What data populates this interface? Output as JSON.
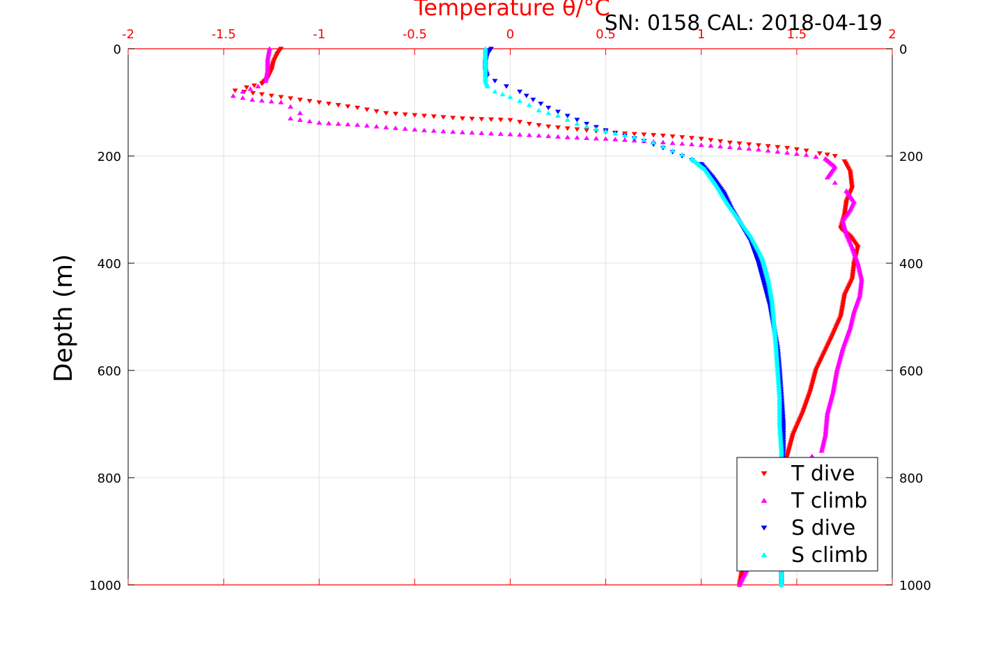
{
  "chart_data": {
    "type": "scatter",
    "title": "Temperature θ/°C",
    "annotation": "SN: 0158  CAL: 2018-04-19",
    "xlabel": "Temperature θ/°C",
    "ylabel": "Depth (m)",
    "xlim": [
      -2,
      2
    ],
    "ylim": [
      0,
      1000
    ],
    "y_reversed": true,
    "x_axis_position": "top",
    "grid": true,
    "legend_position": "bottom-right",
    "x_ticks": [
      "-2",
      "-1.5",
      "-1",
      "-0.5",
      "0",
      "0.5",
      "1",
      "1.5",
      "2"
    ],
    "y_ticks_left": [
      "0",
      "200",
      "400",
      "600",
      "800",
      "1000"
    ],
    "y_ticks_right": [
      "0",
      "200",
      "400",
      "600",
      "800",
      "1000"
    ],
    "colors": {
      "axis_top": "#ff0000",
      "grid": "#e0e0e0",
      "t_dive": "#ff0000",
      "t_climb": "#ff00ff",
      "s_dive": "#0000ff",
      "s_climb": "#00ffff"
    },
    "series": [
      {
        "name": "T dive",
        "marker": "triangle-down",
        "color": "#ff0000",
        "points": [
          [
            -1.2,
            0
          ],
          [
            -1.22,
            10
          ],
          [
            -1.24,
            25
          ],
          [
            -1.25,
            40
          ],
          [
            -1.27,
            55
          ],
          [
            -1.3,
            65
          ],
          [
            -1.38,
            72
          ],
          [
            -1.44,
            78
          ],
          [
            -1.3,
            85
          ],
          [
            -1.2,
            90
          ],
          [
            -1.1,
            95
          ],
          [
            -1.0,
            100
          ],
          [
            -0.9,
            105
          ],
          [
            -0.8,
            110
          ],
          [
            -0.65,
            120
          ],
          [
            -0.45,
            125
          ],
          [
            -0.25,
            130
          ],
          [
            0.0,
            133
          ],
          [
            0.1,
            140
          ],
          [
            0.2,
            145
          ],
          [
            0.4,
            152
          ],
          [
            0.6,
            158
          ],
          [
            0.8,
            162
          ],
          [
            1.0,
            168
          ],
          [
            1.15,
            175
          ],
          [
            1.3,
            180
          ],
          [
            1.45,
            185
          ],
          [
            1.55,
            190
          ],
          [
            1.62,
            195
          ],
          [
            1.7,
            200
          ],
          [
            1.75,
            210
          ],
          [
            1.78,
            230
          ],
          [
            1.79,
            260
          ],
          [
            1.76,
            285
          ],
          [
            1.75,
            310
          ],
          [
            1.73,
            335
          ],
          [
            1.78,
            350
          ],
          [
            1.82,
            370
          ],
          [
            1.8,
            400
          ],
          [
            1.79,
            430
          ],
          [
            1.75,
            460
          ],
          [
            1.73,
            500
          ],
          [
            1.68,
            540
          ],
          [
            1.64,
            570
          ],
          [
            1.6,
            600
          ],
          [
            1.57,
            640
          ],
          [
            1.53,
            680
          ],
          [
            1.48,
            720
          ],
          [
            1.45,
            760
          ],
          [
            1.4,
            800
          ],
          [
            1.35,
            850
          ],
          [
            1.28,
            900
          ],
          [
            1.24,
            950
          ],
          [
            1.21,
            980
          ],
          [
            1.2,
            1000
          ]
        ]
      },
      {
        "name": "T climb",
        "marker": "triangle-up",
        "color": "#ff00ff",
        "points": [
          [
            -1.26,
            0
          ],
          [
            -1.27,
            20
          ],
          [
            -1.27,
            40
          ],
          [
            -1.28,
            60
          ],
          [
            -1.32,
            70
          ],
          [
            -1.4,
            80
          ],
          [
            -1.45,
            88
          ],
          [
            -1.35,
            95
          ],
          [
            -1.2,
            100
          ],
          [
            -1.15,
            108
          ],
          [
            -1.1,
            120
          ],
          [
            -1.15,
            130
          ],
          [
            -1.0,
            138
          ],
          [
            -0.8,
            142
          ],
          [
            -0.6,
            148
          ],
          [
            -0.45,
            152
          ],
          [
            -0.3,
            155
          ],
          [
            -0.1,
            158
          ],
          [
            0.1,
            161
          ],
          [
            0.3,
            165
          ],
          [
            0.5,
            168
          ],
          [
            0.7,
            172
          ],
          [
            0.9,
            177
          ],
          [
            1.1,
            182
          ],
          [
            1.3,
            188
          ],
          [
            1.45,
            194
          ],
          [
            1.55,
            198
          ],
          [
            1.65,
            205
          ],
          [
            1.7,
            220
          ],
          [
            1.66,
            240
          ],
          [
            1.7,
            250
          ],
          [
            1.76,
            265
          ],
          [
            1.8,
            285
          ],
          [
            1.78,
            300
          ],
          [
            1.74,
            320
          ],
          [
            1.76,
            345
          ],
          [
            1.79,
            370
          ],
          [
            1.82,
            400
          ],
          [
            1.84,
            430
          ],
          [
            1.83,
            460
          ],
          [
            1.8,
            490
          ],
          [
            1.78,
            520
          ],
          [
            1.74,
            560
          ],
          [
            1.71,
            600
          ],
          [
            1.69,
            640
          ],
          [
            1.66,
            680
          ],
          [
            1.65,
            720
          ],
          [
            1.63,
            750
          ],
          [
            1.58,
            760
          ],
          [
            1.5,
            800
          ],
          [
            1.42,
            850
          ],
          [
            1.35,
            900
          ],
          [
            1.27,
            950
          ],
          [
            1.22,
            985
          ],
          [
            1.2,
            1000
          ]
        ]
      },
      {
        "name": "S dive",
        "marker": "triangle-down",
        "color": "#0000ff",
        "points": [
          [
            -0.1,
            0
          ],
          [
            -0.12,
            10
          ],
          [
            -0.13,
            25
          ],
          [
            -0.13,
            40
          ],
          [
            -0.12,
            50
          ],
          [
            -0.08,
            60
          ],
          [
            -0.02,
            70
          ],
          [
            0.05,
            80
          ],
          [
            0.12,
            95
          ],
          [
            0.2,
            110
          ],
          [
            0.3,
            125
          ],
          [
            0.4,
            140
          ],
          [
            0.5,
            152
          ],
          [
            0.6,
            162
          ],
          [
            0.7,
            172
          ],
          [
            0.8,
            185
          ],
          [
            0.9,
            200
          ],
          [
            1.0,
            215
          ],
          [
            1.06,
            240
          ],
          [
            1.12,
            270
          ],
          [
            1.16,
            300
          ],
          [
            1.21,
            330
          ],
          [
            1.26,
            360
          ],
          [
            1.3,
            400
          ],
          [
            1.33,
            440
          ],
          [
            1.36,
            480
          ],
          [
            1.38,
            520
          ],
          [
            1.4,
            560
          ],
          [
            1.41,
            600
          ],
          [
            1.42,
            650
          ],
          [
            1.43,
            700
          ],
          [
            1.43,
            750
          ],
          [
            1.42,
            800
          ],
          [
            1.42,
            850
          ],
          [
            1.42,
            900
          ],
          [
            1.42,
            950
          ],
          [
            1.42,
            1000
          ]
        ]
      },
      {
        "name": "S climb",
        "marker": "triangle-up",
        "color": "#00ffff",
        "points": [
          [
            -0.13,
            0
          ],
          [
            -0.13,
            15
          ],
          [
            -0.13,
            30
          ],
          [
            -0.13,
            45
          ],
          [
            -0.13,
            60
          ],
          [
            -0.12,
            70
          ],
          [
            -0.08,
            80
          ],
          [
            0.0,
            90
          ],
          [
            0.1,
            105
          ],
          [
            0.15,
            115
          ],
          [
            0.25,
            125
          ],
          [
            0.35,
            140
          ],
          [
            0.45,
            150
          ],
          [
            0.55,
            158
          ],
          [
            0.65,
            165
          ],
          [
            0.75,
            175
          ],
          [
            0.85,
            190
          ],
          [
            0.95,
            205
          ],
          [
            1.02,
            225
          ],
          [
            1.08,
            255
          ],
          [
            1.14,
            290
          ],
          [
            1.2,
            320
          ],
          [
            1.26,
            350
          ],
          [
            1.32,
            390
          ],
          [
            1.35,
            430
          ],
          [
            1.37,
            470
          ],
          [
            1.38,
            510
          ],
          [
            1.39,
            550
          ],
          [
            1.4,
            600
          ],
          [
            1.41,
            650
          ],
          [
            1.41,
            700
          ],
          [
            1.42,
            750
          ],
          [
            1.42,
            800
          ],
          [
            1.42,
            850
          ],
          [
            1.41,
            900
          ],
          [
            1.42,
            950
          ],
          [
            1.42,
            1000
          ]
        ]
      }
    ]
  }
}
